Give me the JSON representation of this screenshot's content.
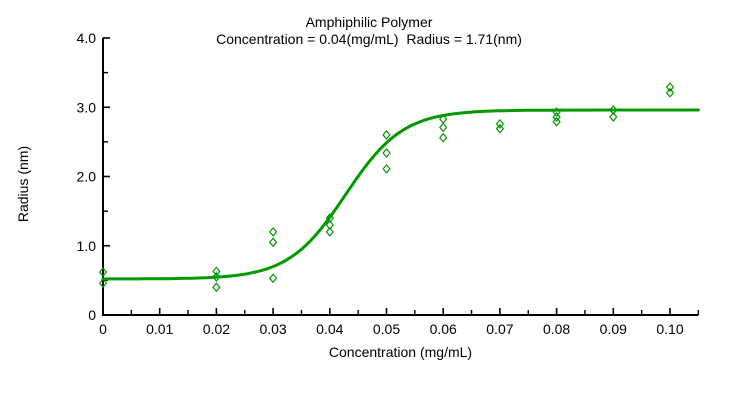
{
  "chart_data": {
    "type": "scatter",
    "title": "Amphiphilic Polymer",
    "subtitle": "Concentration = 0.04(mg/mL)  Radius = 1.71(nm)",
    "xlabel": "Concentration (mg/mL)",
    "ylabel": "Radius (nm)",
    "xlim": [
      0,
      0.105
    ],
    "ylim": [
      0,
      4.0
    ],
    "x_major_tick_values": [
      0,
      0.01,
      0.02,
      0.03,
      0.04,
      0.05,
      0.06,
      0.07,
      0.08,
      0.09,
      0.1
    ],
    "x_tick_labels": [
      "0",
      "0.01",
      "0.02",
      "0.03",
      "0.04",
      "0.05",
      "0.06",
      "0.07",
      "0.08",
      "0.09",
      "0.10"
    ],
    "x_minor_tick_values": [
      0.005,
      0.015,
      0.025,
      0.035,
      0.045,
      0.055,
      0.065,
      0.075,
      0.085,
      0.095,
      0.105
    ],
    "y_major_tick_values": [
      0,
      1,
      2,
      3,
      4
    ],
    "y_tick_labels": [
      "0",
      "1.0",
      "2.0",
      "3.0",
      "4.0"
    ],
    "y_minor_tick_values": [
      0.5,
      1.5,
      2.5,
      3.5
    ],
    "grid": false,
    "legend": "none",
    "marker": "open-diamond",
    "series_color": "#009900",
    "axis_color": "#000000",
    "points": [
      [
        0,
        0.62
      ],
      [
        0,
        0.46
      ],
      [
        0.02,
        0.63
      ],
      [
        0.02,
        0.55
      ],
      [
        0.02,
        0.4
      ],
      [
        0.03,
        1.2
      ],
      [
        0.03,
        1.05
      ],
      [
        0.03,
        0.53
      ],
      [
        0.04,
        1.4
      ],
      [
        0.04,
        1.3
      ],
      [
        0.04,
        1.2
      ],
      [
        0.05,
        2.6
      ],
      [
        0.05,
        2.34
      ],
      [
        0.05,
        2.11
      ],
      [
        0.06,
        2.83
      ],
      [
        0.06,
        2.71
      ],
      [
        0.06,
        2.56
      ],
      [
        0.07,
        2.76
      ],
      [
        0.07,
        2.69
      ],
      [
        0.08,
        2.93
      ],
      [
        0.08,
        2.86
      ],
      [
        0.08,
        2.79
      ],
      [
        0.09,
        2.96
      ],
      [
        0.09,
        2.86
      ],
      [
        0.1,
        3.29
      ],
      [
        0.1,
        3.21
      ]
    ],
    "fit_curve": {
      "type": "logistic",
      "bottom": 0.52,
      "top": 2.96,
      "x50": 0.0428,
      "scale": 0.00505,
      "x_range": [
        0,
        0.105
      ]
    }
  }
}
